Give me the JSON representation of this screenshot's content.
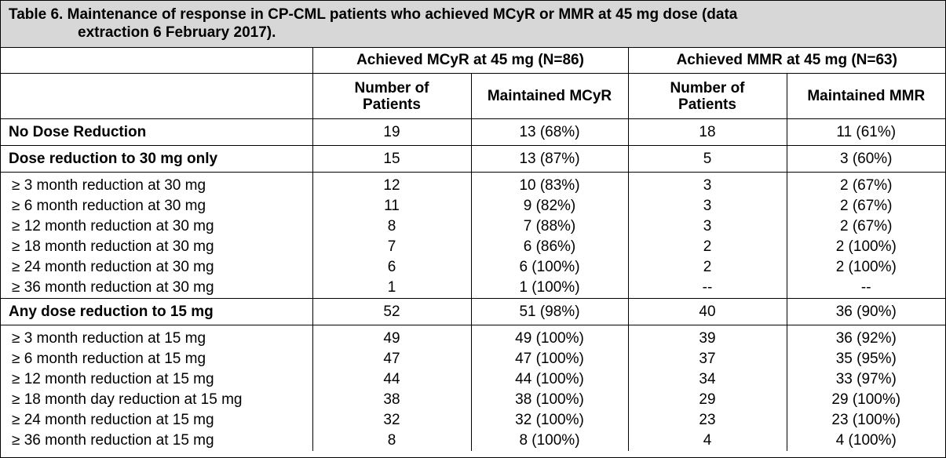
{
  "caption": {
    "line1": "Table 6. Maintenance of response in CP-CML patients who achieved MCyR or MMR at 45 mg dose (data",
    "line2": "extraction 6 February 2017)."
  },
  "header": {
    "group1": "Achieved MCyR at 45 mg (N=86)",
    "group2": "Achieved MMR at 45 mg (N=63)",
    "number_of": "Number of",
    "patients": "Patients",
    "maintained_mcyr": "Maintained MCyR",
    "maintained_mmr": "Maintained MMR"
  },
  "rows": {
    "no_dose": {
      "label": "No Dose Reduction",
      "c1": "19",
      "c2": "13 (68%)",
      "c3": "18",
      "c4": "11 (61%)"
    },
    "dr30": {
      "label": "Dose reduction to 30 mg only",
      "c1": "15",
      "c2": "13 (87%)",
      "c3": "5",
      "c4": "3 (60%)"
    },
    "dr30_sub": [
      {
        "label": "≥ 3 month reduction at 30 mg",
        "c1": "12",
        "c2": "10 (83%)",
        "c3": "3",
        "c4": "2 (67%)"
      },
      {
        "label": "≥ 6 month reduction at 30 mg",
        "c1": "11",
        "c2": "9 (82%)",
        "c3": "3",
        "c4": "2 (67%)"
      },
      {
        "label": "≥ 12 month reduction at 30 mg",
        "c1": "8",
        "c2": "7 (88%)",
        "c3": "3",
        "c4": "2 (67%)"
      },
      {
        "label": "≥ 18 month reduction at 30 mg",
        "c1": "7",
        "c2": "6 (86%)",
        "c3": "2",
        "c4": "2 (100%)"
      },
      {
        "label": "≥ 24 month reduction at 30 mg",
        "c1": "6",
        "c2": "6 (100%)",
        "c3": "2",
        "c4": "2 (100%)"
      },
      {
        "label": "≥ 36 month reduction at 30 mg",
        "c1": "1",
        "c2": "1 (100%)",
        "c3": "--",
        "c4": "--"
      }
    ],
    "dr15": {
      "label": "Any dose reduction to 15 mg",
      "c1": "52",
      "c2": "51 (98%)",
      "c3": "40",
      "c4": "36 (90%)"
    },
    "dr15_sub": [
      {
        "label": "≥ 3 month reduction at 15 mg",
        "c1": "49",
        "c2": "49 (100%)",
        "c3": "39",
        "c4": "36 (92%)"
      },
      {
        "label": "≥ 6 month reduction at 15 mg",
        "c1": "47",
        "c2": "47 (100%)",
        "c3": "37",
        "c4": "35 (95%)"
      },
      {
        "label": "≥ 12 month reduction at 15 mg",
        "c1": "44",
        "c2": "44 (100%)",
        "c3": "34",
        "c4": "33 (97%)"
      },
      {
        "label": "≥ 18 month day reduction at 15 mg",
        "c1": "38",
        "c2": "38 (100%)",
        "c3": "29",
        "c4": "29 (100%)"
      },
      {
        "label": "≥ 24 month reduction at 15 mg",
        "c1": "32",
        "c2": "32 (100%)",
        "c3": "23",
        "c4": "23 (100%)"
      },
      {
        "label": "≥ 36 month reduction at 15 mg",
        "c1": "8",
        "c2": "8 (100%)",
        "c3": "4",
        "c4": "4 (100%)"
      }
    ]
  }
}
